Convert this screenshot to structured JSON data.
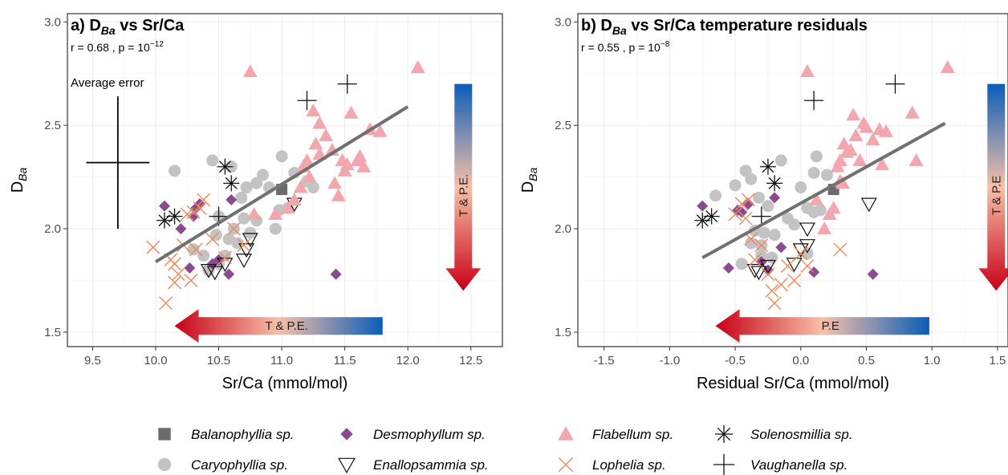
{
  "colors": {
    "Balanophyllia sp.": "#6b6b6b",
    "Caryophyllia sp.": "#c3c3c3",
    "Desmophyllum sp.": "#8a4b8e",
    "Enallopsammia sp.": "#111111",
    "Flabellum sp.": "#f2a7ae",
    "Lophelia sp.": "#f0885a",
    "Solenosmillia sp.": "#111111",
    "Vaughanella sp.": "#111111",
    "fit_line": "#707070",
    "gradient_red": "#c80015",
    "gradient_pale": "#f7c0a8",
    "gradient_blue": "#0a5db8"
  },
  "legend": [
    {
      "name": "Balanophyllia sp.",
      "shape": "square"
    },
    {
      "name": "Caryophyllia sp.",
      "shape": "circle"
    },
    {
      "name": "Desmophyllum sp.",
      "shape": "diamond"
    },
    {
      "name": "Enallopsammia sp.",
      "shape": "triangle-down-open"
    },
    {
      "name": "Flabellum sp.",
      "shape": "triangle-up"
    },
    {
      "name": "Lophelia sp.",
      "shape": "x"
    },
    {
      "name": "Solenosmillia sp.",
      "shape": "asterisk"
    },
    {
      "name": "Vaughanella sp.",
      "shape": "plus"
    }
  ],
  "chart_data": [
    {
      "type": "scatter",
      "panel": "a",
      "title_prefix": "a) D",
      "title_sub": "Ba",
      "title_suffix": " vs Sr/Ca",
      "stats_text": "r =  0.68 , p =  10",
      "stats_exp": "−12",
      "xlabel": "Sr/Ca (mmol/mol)",
      "ylabel_main": "D",
      "ylabel_sub": "Ba",
      "xlim": [
        9.3,
        12.75
      ],
      "ylim": [
        1.43,
        3.04
      ],
      "xticks": [
        9.5,
        10.0,
        10.5,
        11.0,
        11.5,
        12.0,
        12.5
      ],
      "xtick_labels": [
        "9.5",
        "10.0",
        "10.5",
        "11.0",
        "11.5",
        "12.0",
        "12.5"
      ],
      "yticks": [
        1.5,
        2.0,
        2.5,
        3.0
      ],
      "ytick_labels": [
        "1.5",
        "2.0",
        "2.5",
        "3.0"
      ],
      "grid": true,
      "fit_line": {
        "x": [
          10.0,
          12.0
        ],
        "y": [
          1.84,
          2.59
        ]
      },
      "error_annotation": {
        "label": "Average error",
        "x": 9.7,
        "y": 2.32,
        "x_err": 0.25,
        "y_err": 0.32
      },
      "gradient_arrows": [
        {
          "orientation": "vertical",
          "label": "T & P.E.",
          "x_range": [
            12.32,
            12.56
          ],
          "y_range": [
            2.7,
            1.7
          ]
        },
        {
          "orientation": "horizontal",
          "label": "T & P.E.",
          "x_range": [
            10.15,
            11.8
          ],
          "y_range": [
            1.48,
            1.58
          ]
        }
      ],
      "series": [
        {
          "name": "Balanophyllia sp.",
          "x": [
            11.0
          ],
          "y": [
            2.19
          ]
        },
        {
          "name": "Caryophyllia sp.",
          "x": [
            10.15,
            10.45,
            10.48,
            10.5,
            10.55,
            10.6,
            10.62,
            10.65,
            10.68,
            10.7,
            10.72,
            10.75,
            10.8,
            10.85,
            10.9,
            10.95,
            10.98,
            11.0,
            11.05,
            11.1,
            11.2,
            11.25,
            10.3,
            10.38,
            10.42,
            10.5,
            10.58,
            10.8
          ],
          "y": [
            2.28,
            2.33,
            1.97,
            1.83,
            1.87,
            2.3,
            2.0,
            1.93,
            2.15,
            2.05,
            2.2,
            1.98,
            2.22,
            2.26,
            2.2,
            2.0,
            2.09,
            2.35,
            2.1,
            2.27,
            2.23,
            2.2,
            1.9,
            1.87,
            1.8,
            2.06,
            1.95,
            2.04
          ]
        },
        {
          "name": "Desmophyllum sp.",
          "x": [
            10.07,
            10.2,
            10.27,
            10.3,
            10.35,
            10.5,
            10.58,
            10.6,
            11.43,
            10.45,
            10.32
          ],
          "y": [
            2.11,
            2.0,
            1.81,
            2.06,
            2.12,
            1.85,
            1.78,
            2.14,
            1.78,
            1.83,
            2.1
          ]
        },
        {
          "name": "Enallopsammia sp.",
          "x": [
            10.42,
            10.47,
            10.55,
            10.7,
            10.72,
            10.75,
            11.1
          ],
          "y": [
            1.8,
            1.79,
            1.83,
            1.85,
            1.9,
            1.95,
            2.12
          ]
        },
        {
          "name": "Flabellum sp.",
          "x": [
            10.75,
            10.78,
            10.95,
            11.05,
            11.1,
            11.15,
            11.17,
            11.2,
            11.25,
            11.27,
            11.3,
            11.3,
            11.35,
            11.4,
            11.42,
            11.45,
            11.48,
            11.5,
            11.52,
            11.55,
            11.6,
            11.62,
            11.65,
            11.7,
            11.78,
            12.08,
            11.22
          ],
          "y": [
            2.76,
            2.07,
            2.07,
            2.1,
            2.14,
            2.2,
            2.3,
            2.33,
            2.57,
            2.41,
            2.36,
            2.51,
            2.45,
            2.38,
            2.22,
            2.16,
            2.33,
            2.28,
            2.31,
            2.56,
            2.33,
            2.35,
            2.3,
            2.48,
            2.47,
            2.78,
            2.25
          ]
        },
        {
          "name": "Lophelia sp.",
          "x": [
            9.98,
            10.08,
            10.12,
            10.15,
            10.18,
            10.22,
            10.25,
            10.28,
            10.3,
            10.32,
            10.35,
            10.38,
            10.45,
            10.55,
            10.62,
            10.7,
            10.15
          ],
          "y": [
            1.91,
            1.64,
            1.85,
            1.74,
            1.78,
            1.92,
            2.07,
            1.75,
            2.08,
            1.9,
            2.1,
            2.14,
            1.95,
            1.86,
            2.0,
            1.92,
            1.83
          ]
        },
        {
          "name": "Solenosmillia sp.",
          "x": [
            10.07,
            10.15,
            10.55,
            10.6
          ],
          "y": [
            2.04,
            2.06,
            2.3,
            2.22
          ]
        },
        {
          "name": "Vaughanella sp.",
          "x": [
            10.5,
            11.2,
            11.52
          ],
          "y": [
            2.06,
            2.62,
            2.7
          ]
        }
      ]
    },
    {
      "type": "scatter",
      "panel": "b",
      "title_prefix": "b) D",
      "title_sub": "Ba",
      "title_suffix": " vs Sr/Ca temperature residuals",
      "stats_text": "r = 0.55 , p =  10",
      "stats_exp": "−8",
      "xlabel": "Residual Sr/Ca (mmol/mol)",
      "ylabel_main": "D",
      "ylabel_sub": "Ba",
      "xlim": [
        -1.7,
        1.58
      ],
      "ylim": [
        1.43,
        3.04
      ],
      "xticks": [
        -1.5,
        -1.0,
        -0.5,
        0.0,
        0.5,
        1.0,
        1.5
      ],
      "xtick_labels": [
        "-1.5",
        "-1.0",
        "-0.5",
        "0.0",
        "0.5",
        "1.0",
        "1.5"
      ],
      "yticks": [
        1.5,
        2.0,
        2.5,
        3.0
      ],
      "ytick_labels": [
        "1.5",
        "2.0",
        "2.5",
        "3.0"
      ],
      "grid": true,
      "fit_line": {
        "x": [
          -0.75,
          1.1
        ],
        "y": [
          1.86,
          2.51
        ]
      },
      "gradient_arrows": [
        {
          "orientation": "vertical",
          "label": "T & P.E",
          "x_range": [
            1.38,
            1.6
          ],
          "y_range": [
            2.7,
            1.7
          ]
        },
        {
          "orientation": "horizontal",
          "label": "P.E",
          "x_range": [
            -0.65,
            0.98
          ],
          "y_range": [
            1.48,
            1.58
          ]
        }
      ],
      "series": [
        {
          "name": "Balanophyllia sp.",
          "x": [
            0.25
          ],
          "y": [
            2.19
          ]
        },
        {
          "name": "Caryophyllia sp.",
          "x": [
            -0.65,
            -0.5,
            -0.42,
            -0.38,
            -0.35,
            -0.3,
            -0.28,
            -0.25,
            -0.2,
            -0.15,
            -0.1,
            -0.05,
            0.0,
            0.05,
            0.1,
            0.12,
            0.15,
            0.2,
            -0.45,
            -0.3,
            -0.22,
            0.05,
            0.1,
            -0.38,
            -0.32
          ],
          "y": [
            2.16,
            2.21,
            2.28,
            2.24,
            1.99,
            1.92,
            1.98,
            2.11,
            1.97,
            2.33,
            2.05,
            2.02,
            2.2,
            2.1,
            2.27,
            2.35,
            2.09,
            2.26,
            1.83,
            1.87,
            1.86,
            1.88,
            2.08,
            1.93,
            2.15
          ]
        },
        {
          "name": "Desmophyllum sp.",
          "x": [
            -0.75,
            -0.55,
            -0.45,
            -0.4,
            -0.25,
            -0.2,
            -0.15,
            0.1,
            0.55,
            -0.3,
            -0.48
          ],
          "y": [
            2.11,
            1.81,
            2.08,
            2.12,
            1.8,
            2.15,
            1.91,
            1.79,
            1.78,
            1.84,
            2.09
          ]
        },
        {
          "name": "Enallopsammia sp.",
          "x": [
            -0.35,
            -0.32,
            -0.25,
            -0.05,
            0.0,
            0.05,
            0.05,
            0.52
          ],
          "y": [
            1.8,
            1.79,
            1.82,
            1.83,
            1.9,
            1.92,
            2.0,
            2.12
          ]
        },
        {
          "name": "Flabellum sp.",
          "x": [
            0.05,
            0.22,
            0.25,
            0.3,
            0.3,
            0.33,
            0.35,
            0.38,
            0.4,
            0.42,
            0.45,
            0.48,
            0.5,
            0.55,
            0.6,
            0.62,
            0.65,
            0.85,
            0.88,
            1.12,
            0.12,
            0.28,
            0.18,
            0.32
          ],
          "y": [
            2.76,
            2.07,
            2.1,
            2.23,
            2.33,
            2.41,
            2.37,
            2.38,
            2.55,
            2.45,
            2.33,
            2.51,
            2.49,
            2.43,
            2.48,
            2.31,
            2.47,
            2.56,
            2.33,
            2.78,
            2.14,
            2.3,
            2.0,
            2.22
          ]
        },
        {
          "name": "Lophelia sp.",
          "x": [
            -0.5,
            -0.45,
            -0.4,
            -0.38,
            -0.35,
            -0.3,
            -0.25,
            -0.2,
            -0.15,
            -0.1,
            -0.05,
            0.0,
            0.05,
            0.3,
            -0.42,
            -0.22
          ],
          "y": [
            2.07,
            2.12,
            2.14,
            1.95,
            1.85,
            1.92,
            1.78,
            1.64,
            1.73,
            1.82,
            1.75,
            1.88,
            1.82,
            1.9,
            2.05,
            1.7
          ]
        },
        {
          "name": "Solenosmillia sp.",
          "x": [
            -0.75,
            -0.68,
            -0.25,
            -0.2
          ],
          "y": [
            2.04,
            2.06,
            2.3,
            2.22
          ]
        },
        {
          "name": "Vaughanella sp.",
          "x": [
            -0.3,
            0.1,
            0.72
          ],
          "y": [
            2.06,
            2.62,
            2.7
          ]
        }
      ]
    }
  ]
}
